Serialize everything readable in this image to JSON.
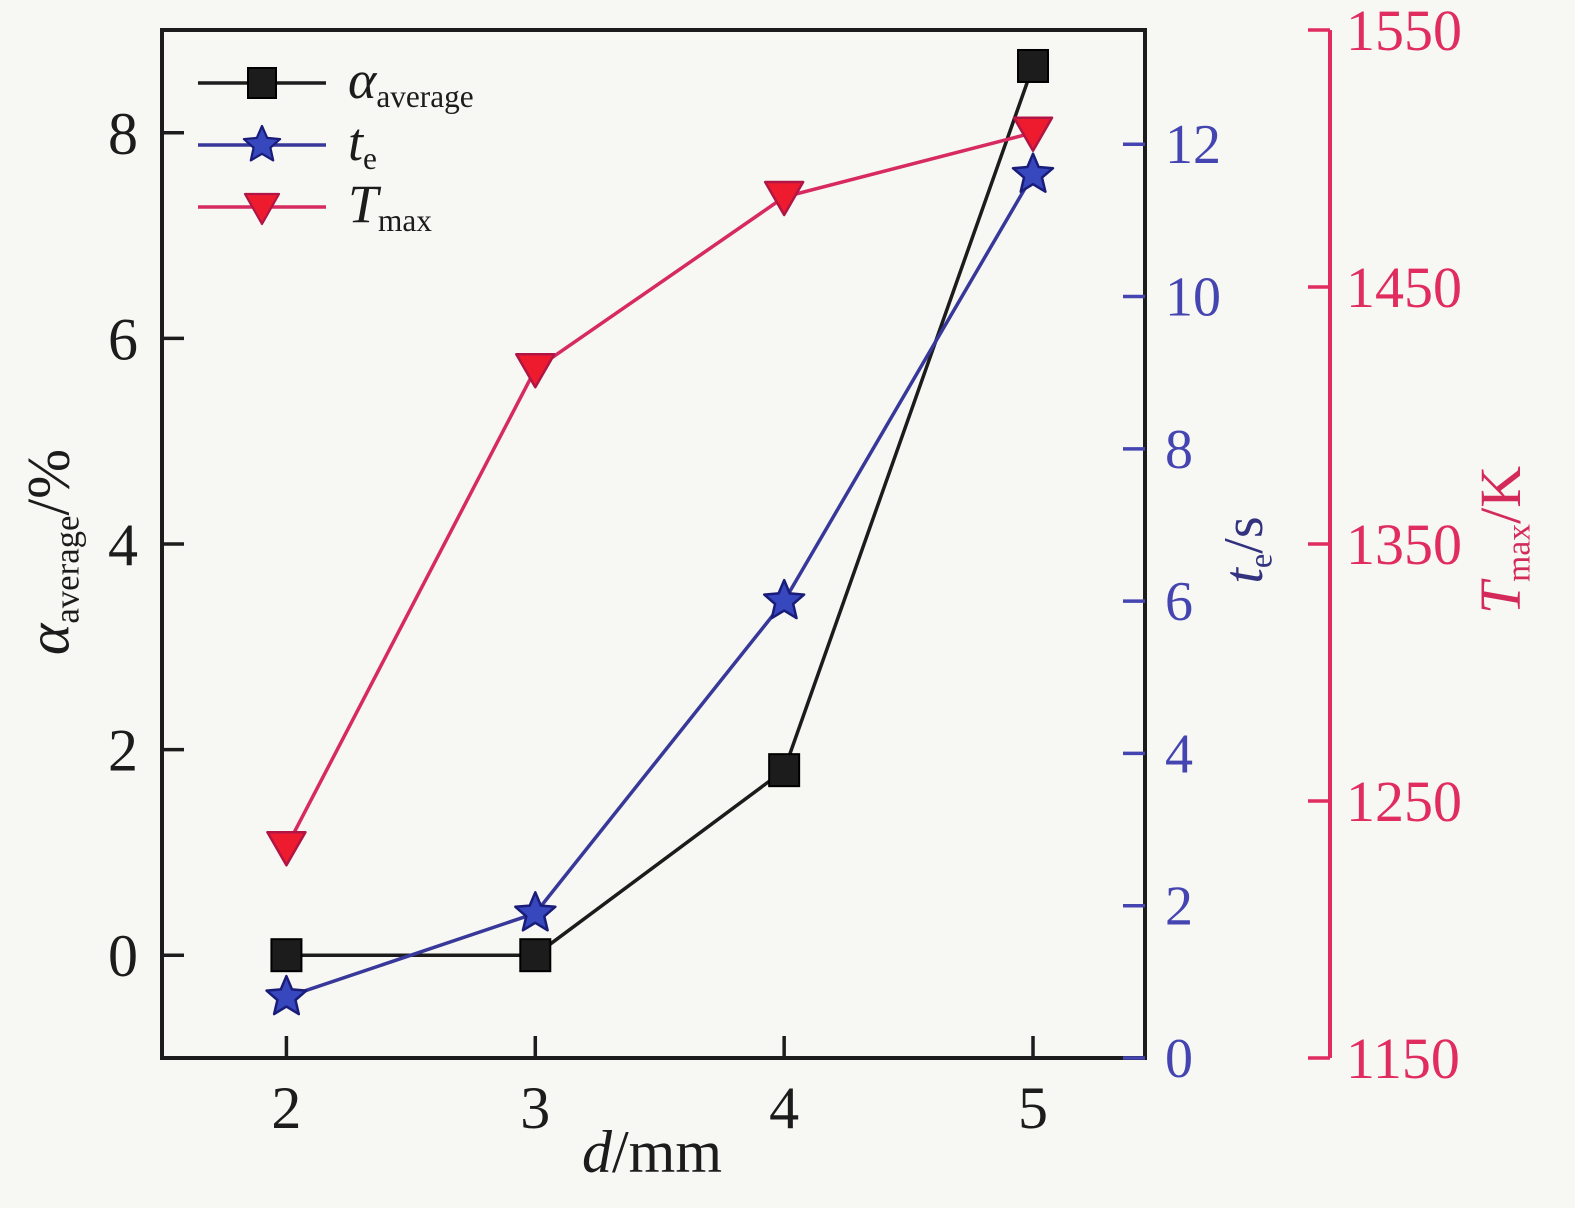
{
  "chart_data": {
    "type": "line",
    "title": "",
    "x": [
      2,
      3,
      4,
      5
    ],
    "x_axis": {
      "title": {
        "main": "d",
        "sub": "",
        "suffix": "/mm"
      },
      "range": [
        1.5,
        5.45
      ],
      "ticks": [
        2,
        3,
        4,
        5
      ]
    },
    "axes": {
      "left": {
        "title": {
          "main": "α",
          "sub": "average",
          "suffix": "/%"
        },
        "range": [
          -1,
          9
        ],
        "ticks": [
          0,
          2,
          4,
          6,
          8
        ],
        "color": "#1c1c1c",
        "title_color": "#1c1c1c"
      },
      "right_te": {
        "title": {
          "main": "t",
          "sub": "e",
          "suffix": "/s"
        },
        "range": [
          0,
          13.5
        ],
        "ticks": [
          0,
          2,
          4,
          6,
          8,
          10,
          12
        ],
        "color": "#4545b2",
        "title_color": "#32327e"
      },
      "right_tmax": {
        "title": {
          "main": "T",
          "sub": "max",
          "suffix": "/K"
        },
        "range": [
          1150,
          1550
        ],
        "ticks": [
          1150,
          1250,
          1350,
          1450,
          1550
        ],
        "color": "#e02c5e",
        "title_color": "#d42a5a"
      }
    },
    "series": [
      {
        "name": "alpha_average",
        "axis": "left",
        "marker": "square",
        "line_color": "#1c1c1c",
        "marker_fill": "#1c1c1c",
        "marker_edge": "#000000",
        "values": [
          0.0,
          0.0,
          1.8,
          8.65
        ]
      },
      {
        "name": "t_e",
        "axis": "right_te",
        "marker": "star",
        "line_color": "#38389a",
        "marker_fill": "#3747bd",
        "marker_edge": "#191c78",
        "values": [
          0.8,
          1.9,
          6.0,
          11.6
        ]
      },
      {
        "name": "T_max",
        "axis": "right_tmax",
        "marker": "triangle-down",
        "line_color": "#d62a60",
        "marker_fill": "#ee1b2e",
        "marker_edge": "#b01545",
        "values": [
          1232,
          1418,
          1485,
          1510
        ]
      }
    ],
    "legend": {
      "position": "top-left-inside",
      "entries": [
        {
          "series": "alpha_average",
          "label": {
            "main": "α",
            "sub": "average"
          }
        },
        {
          "series": "t_e",
          "label": {
            "main": "t",
            "sub": "e"
          }
        },
        {
          "series": "T_max",
          "label": {
            "main": "T",
            "sub": "max"
          }
        }
      ]
    },
    "grid": false
  },
  "colors": {
    "background": "#f7f7f3",
    "frame": "#1c1c1c"
  }
}
